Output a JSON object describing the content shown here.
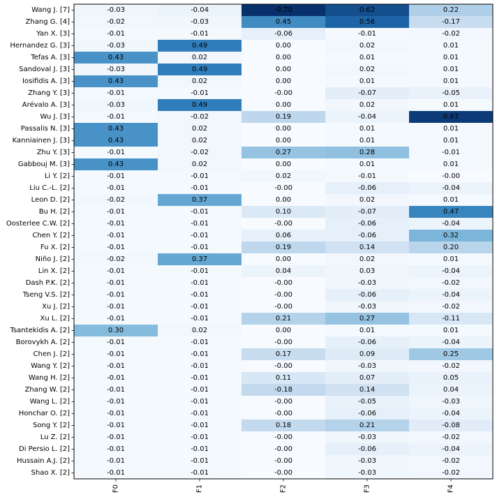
{
  "chart_data": {
    "type": "heatmap",
    "title": "",
    "xlabel": "",
    "ylabel": "",
    "columns": [
      "F0",
      "F1",
      "F2",
      "F3",
      "F4"
    ],
    "rows": [
      "Wang J. [7]",
      "Zhang G. [4]",
      "Yan X. [3]",
      "Hernandez G. [3]",
      "Tefas A. [3]",
      "Sandoval J. [3]",
      "Iosifidis A. [3]",
      "Zhang Y. [3]",
      "Arévalo A. [3]",
      "Wu J. [3]",
      "Passalis N. [3]",
      "Kanniainen J. [3]",
      "Zhu Y. [3]",
      "Gabbouj M. [3]",
      "Li Y. [2]",
      "Liu C.-L. [2]",
      "Leon D. [2]",
      "Bu H. [2]",
      "Oosterlee C.W. [2]",
      "Chen Y. [2]",
      "Fu X. [2]",
      "Niño J. [2]",
      "Lin X. [2]",
      "Dash P.K. [2]",
      "Tseng V.S. [2]",
      "Xu J. [2]",
      "Xu L. [2]",
      "Tsantekidis A. [2]",
      "Borovykh A. [2]",
      "Chen J. [2]",
      "Wang Y. [2]",
      "Wang H. [2]",
      "Zhang W. [2]",
      "Wang L. [2]",
      "Honchar O. [2]",
      "Song Y. [2]",
      "Lu Z. [2]",
      "Di Persio L. [2]",
      "Hussain A.J. [2]",
      "Shao X. [2]"
    ],
    "labels": [
      [
        "-0.03",
        "-0.04",
        "-0.70",
        "0.62",
        "0.22"
      ],
      [
        "-0.02",
        "-0.03",
        "0.45",
        "0.56",
        "-0.17"
      ],
      [
        "-0.01",
        "-0.01",
        "-0.06",
        "-0.01",
        "-0.02"
      ],
      [
        "-0.03",
        "0.49",
        "0.00",
        "0.02",
        "0.01"
      ],
      [
        "0.43",
        "0.02",
        "0.00",
        "0.01",
        "0.01"
      ],
      [
        "-0.03",
        "0.49",
        "0.00",
        "0.02",
        "0.01"
      ],
      [
        "0.43",
        "0.02",
        "0.00",
        "0.01",
        "0.01"
      ],
      [
        "-0.01",
        "-0.01",
        "-0.00",
        "-0.07",
        "-0.05"
      ],
      [
        "-0.03",
        "0.49",
        "0.00",
        "0.02",
        "0.01"
      ],
      [
        "-0.01",
        "-0.02",
        "0.19",
        "-0.04",
        "0.67"
      ],
      [
        "0.43",
        "0.02",
        "0.00",
        "0.01",
        "0.01"
      ],
      [
        "0.43",
        "0.02",
        "0.00",
        "0.01",
        "0.01"
      ],
      [
        "-0.01",
        "-0.02",
        "0.27",
        "0.28",
        "-0.01"
      ],
      [
        "0.43",
        "0.02",
        "0.00",
        "0.01",
        "0.01"
      ],
      [
        "-0.01",
        "-0.01",
        "0.02",
        "-0.01",
        "-0.00"
      ],
      [
        "-0.01",
        "-0.01",
        "-0.00",
        "-0.06",
        "-0.04"
      ],
      [
        "-0.02",
        "0.37",
        "0.00",
        "0.02",
        "0.01"
      ],
      [
        "-0.01",
        "-0.01",
        "0.10",
        "-0.07",
        "0.47"
      ],
      [
        "-0.01",
        "-0.01",
        "-0.00",
        "-0.06",
        "-0.04"
      ],
      [
        "-0.01",
        "-0.01",
        "0.06",
        "-0.06",
        "0.32"
      ],
      [
        "-0.01",
        "-0.01",
        "0.19",
        "0.14",
        "0.20"
      ],
      [
        "-0.02",
        "0.37",
        "0.00",
        "0.02",
        "0.01"
      ],
      [
        "-0.01",
        "-0.01",
        "0.04",
        "0.03",
        "-0.04"
      ],
      [
        "-0.01",
        "-0.01",
        "-0.00",
        "-0.03",
        "-0.02"
      ],
      [
        "-0.01",
        "-0.01",
        "-0.00",
        "-0.06",
        "-0.04"
      ],
      [
        "-0.01",
        "-0.01",
        "-0.00",
        "-0.03",
        "-0.02"
      ],
      [
        "-0.01",
        "-0.01",
        "0.21",
        "0.27",
        "-0.11"
      ],
      [
        "0.30",
        "0.02",
        "0.00",
        "0.01",
        "0.01"
      ],
      [
        "-0.01",
        "-0.01",
        "-0.00",
        "-0.06",
        "-0.04"
      ],
      [
        "-0.01",
        "-0.01",
        "0.17",
        "0.09",
        "0.25"
      ],
      [
        "-0.01",
        "-0.01",
        "-0.00",
        "-0.03",
        "-0.02"
      ],
      [
        "-0.01",
        "-0.01",
        "0.11",
        "0.07",
        "0.05"
      ],
      [
        "-0.01",
        "-0.01",
        "-0.18",
        "0.14",
        "0.04"
      ],
      [
        "-0.01",
        "-0.01",
        "-0.00",
        "-0.05",
        "-0.03"
      ],
      [
        "-0.01",
        "-0.01",
        "-0.00",
        "-0.06",
        "-0.04"
      ],
      [
        "-0.01",
        "-0.01",
        "0.18",
        "0.21",
        "-0.08"
      ],
      [
        "-0.01",
        "-0.01",
        "-0.00",
        "-0.03",
        "-0.02"
      ],
      [
        "-0.01",
        "-0.01",
        "-0.00",
        "-0.06",
        "-0.04"
      ],
      [
        "-0.01",
        "-0.01",
        "-0.00",
        "-0.03",
        "-0.02"
      ],
      [
        "-0.01",
        "-0.01",
        "-0.00",
        "-0.03",
        "-0.02"
      ]
    ],
    "color_scale": "absolute value, white to dark blue",
    "color_low": "#f7fbff",
    "color_high": "#08306b",
    "vmax": 0.7,
    "grid": false,
    "legend": "none"
  }
}
